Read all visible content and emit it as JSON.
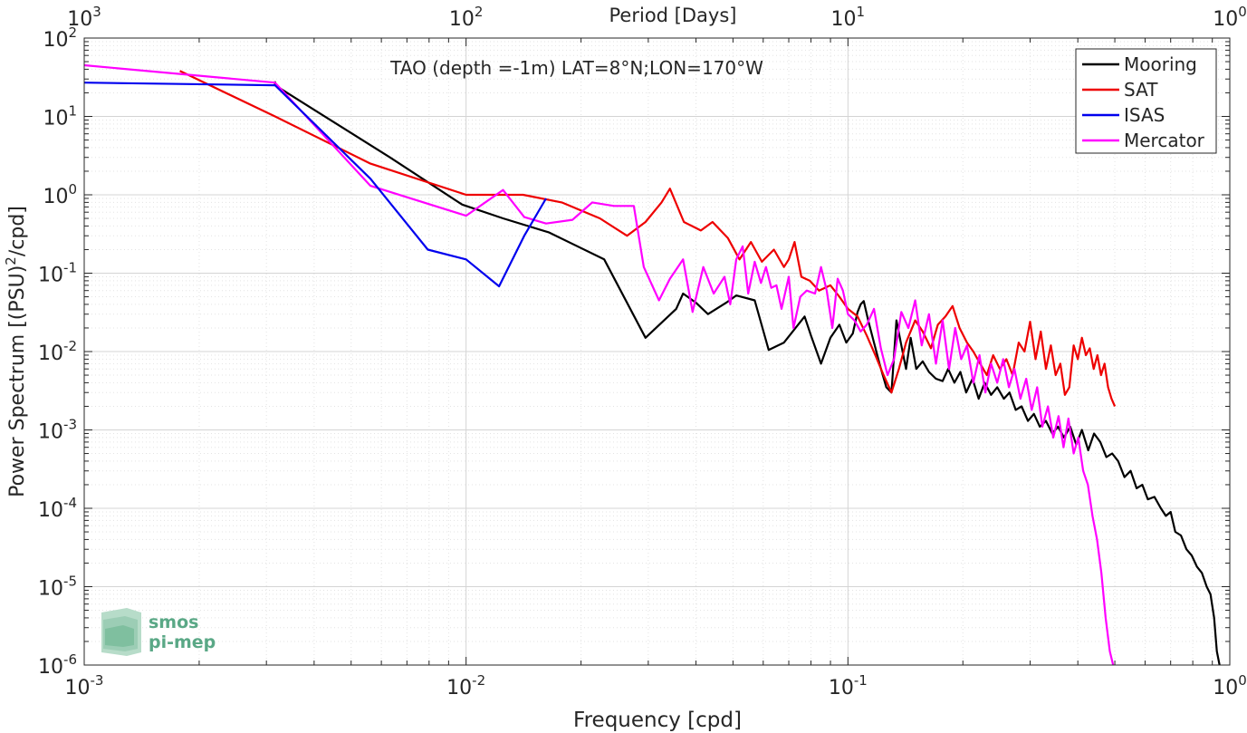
{
  "chart_data": {
    "type": "line",
    "title": "TAO (depth =-1m) LAT=8°N;LON=170°W",
    "xlabel": "Frequency [cpd]",
    "ylabel_main": "Power Spectrum [(PSU)",
    "ylabel_sup": "2",
    "ylabel_tail": "/cpd]",
    "top_xlabel": "Period [Days]",
    "xscale": "log",
    "yscale": "log",
    "xlim": [
      0.001,
      1
    ],
    "ylim": [
      1e-06,
      100
    ],
    "grid": true,
    "legend_position": "top-right",
    "x_ticks": [
      {
        "value": 0.001,
        "base": "10",
        "exp": "-3"
      },
      {
        "value": 0.01,
        "base": "10",
        "exp": "-2"
      },
      {
        "value": 0.1,
        "base": "10",
        "exp": "-1"
      },
      {
        "value": 1,
        "base": "10",
        "exp": "0"
      }
    ],
    "top_ticks": [
      {
        "value": 0.001,
        "base": "10",
        "exp": "3"
      },
      {
        "value": 0.01,
        "base": "10",
        "exp": "2"
      },
      {
        "value": 0.1,
        "base": "10",
        "exp": "1"
      },
      {
        "value": 1,
        "base": "10",
        "exp": "0"
      }
    ],
    "y_ticks": [
      {
        "value": 1e-06,
        "base": "10",
        "exp": "-6"
      },
      {
        "value": 1e-05,
        "base": "10",
        "exp": "-5"
      },
      {
        "value": 0.0001,
        "base": "10",
        "exp": "-4"
      },
      {
        "value": 0.001,
        "base": "10",
        "exp": "-3"
      },
      {
        "value": 0.01,
        "base": "10",
        "exp": "-2"
      },
      {
        "value": 0.1,
        "base": "10",
        "exp": "-1"
      },
      {
        "value": 1,
        "base": "10",
        "exp": "0"
      },
      {
        "value": 10,
        "base": "10",
        "exp": "1"
      },
      {
        "value": 100,
        "base": "10",
        "exp": "2"
      }
    ],
    "series": [
      {
        "name": "Mooring",
        "color": "#000000",
        "points": [
          [
            0.00316,
            28
          ],
          [
            0.00316,
            25
          ],
          [
            0.00632,
            3
          ],
          [
            0.00977,
            0.75
          ],
          [
            0.0125,
            0.5
          ],
          [
            0.0165,
            0.33
          ],
          [
            0.023,
            0.15
          ],
          [
            0.0295,
            0.015
          ],
          [
            0.0355,
            0.035
          ],
          [
            0.037,
            0.055
          ],
          [
            0.04,
            0.042
          ],
          [
            0.043,
            0.03
          ],
          [
            0.048,
            0.042
          ],
          [
            0.051,
            0.052
          ],
          [
            0.057,
            0.045
          ],
          [
            0.062,
            0.0105
          ],
          [
            0.068,
            0.013
          ],
          [
            0.077,
            0.028
          ],
          [
            0.08,
            0.016
          ],
          [
            0.085,
            0.007
          ],
          [
            0.09,
            0.015
          ],
          [
            0.095,
            0.022
          ],
          [
            0.099,
            0.013
          ],
          [
            0.103,
            0.017
          ],
          [
            0.106,
            0.032
          ],
          [
            0.108,
            0.04
          ],
          [
            0.11,
            0.044
          ],
          [
            0.113,
            0.025
          ],
          [
            0.117,
            0.013
          ],
          [
            0.121,
            0.007
          ],
          [
            0.126,
            0.0035
          ],
          [
            0.13,
            0.003
          ],
          [
            0.134,
            0.025
          ],
          [
            0.138,
            0.012
          ],
          [
            0.142,
            0.006
          ],
          [
            0.146,
            0.015
          ],
          [
            0.151,
            0.006
          ],
          [
            0.157,
            0.0075
          ],
          [
            0.163,
            0.0055
          ],
          [
            0.17,
            0.0045
          ],
          [
            0.177,
            0.0042
          ],
          [
            0.183,
            0.006
          ],
          [
            0.19,
            0.004
          ],
          [
            0.197,
            0.0055
          ],
          [
            0.204,
            0.003
          ],
          [
            0.212,
            0.0045
          ],
          [
            0.22,
            0.0025
          ],
          [
            0.228,
            0.004
          ],
          [
            0.237,
            0.0028
          ],
          [
            0.246,
            0.0035
          ],
          [
            0.256,
            0.0025
          ],
          [
            0.265,
            0.003
          ],
          [
            0.275,
            0.0018
          ],
          [
            0.285,
            0.002
          ],
          [
            0.296,
            0.0013
          ],
          [
            0.307,
            0.0016
          ],
          [
            0.318,
            0.0011
          ],
          [
            0.33,
            0.0013
          ],
          [
            0.343,
            0.0009
          ],
          [
            0.355,
            0.0011
          ],
          [
            0.368,
            0.0008
          ],
          [
            0.382,
            0.0011
          ],
          [
            0.396,
            0.00065
          ],
          [
            0.41,
            0.001
          ],
          [
            0.426,
            0.00055
          ],
          [
            0.441,
            0.0009
          ],
          [
            0.458,
            0.0007
          ],
          [
            0.475,
            0.00045
          ],
          [
            0.492,
            0.0005
          ],
          [
            0.51,
            0.0004
          ],
          [
            0.53,
            0.00025
          ],
          [
            0.55,
            0.0003
          ],
          [
            0.57,
            0.00018
          ],
          [
            0.59,
            0.0002
          ],
          [
            0.61,
            0.00013
          ],
          [
            0.635,
            0.00014
          ],
          [
            0.66,
            0.0001
          ],
          [
            0.68,
            8e-05
          ],
          [
            0.7,
            9e-05
          ],
          [
            0.72,
            5e-05
          ],
          [
            0.745,
            4.5e-05
          ],
          [
            0.77,
            3e-05
          ],
          [
            0.795,
            2.5e-05
          ],
          [
            0.82,
            1.8e-05
          ],
          [
            0.845,
            1.5e-05
          ],
          [
            0.87,
            1e-05
          ],
          [
            0.89,
            8e-06
          ],
          [
            0.91,
            4e-06
          ],
          [
            0.925,
            1.5e-06
          ],
          [
            0.94,
            1e-06
          ]
        ]
      },
      {
        "name": "SAT",
        "color": "#ee0000",
        "points": [
          [
            0.00178,
            38
          ],
          [
            0.00316,
            10
          ],
          [
            0.00562,
            2.5
          ],
          [
            0.01,
            1
          ],
          [
            0.0141,
            1
          ],
          [
            0.0178,
            0.8
          ],
          [
            0.0224,
            0.5
          ],
          [
            0.0264,
            0.3
          ],
          [
            0.0295,
            0.45
          ],
          [
            0.0325,
            0.8
          ],
          [
            0.0342,
            1.2
          ],
          [
            0.0372,
            0.45
          ],
          [
            0.0412,
            0.35
          ],
          [
            0.0442,
            0.45
          ],
          [
            0.0485,
            0.28
          ],
          [
            0.052,
            0.15
          ],
          [
            0.0557,
            0.25
          ],
          [
            0.0595,
            0.14
          ],
          [
            0.064,
            0.2
          ],
          [
            0.068,
            0.12
          ],
          [
            0.07,
            0.15
          ],
          [
            0.0725,
            0.25
          ],
          [
            0.0755,
            0.09
          ],
          [
            0.0795,
            0.08
          ],
          [
            0.084,
            0.06
          ],
          [
            0.09,
            0.07
          ],
          [
            0.095,
            0.05
          ],
          [
            0.1,
            0.035
          ],
          [
            0.106,
            0.028
          ],
          [
            0.112,
            0.016
          ],
          [
            0.118,
            0.009
          ],
          [
            0.124,
            0.005
          ],
          [
            0.13,
            0.003
          ],
          [
            0.136,
            0.006
          ],
          [
            0.142,
            0.013
          ],
          [
            0.15,
            0.025
          ],
          [
            0.157,
            0.018
          ],
          [
            0.165,
            0.011
          ],
          [
            0.172,
            0.022
          ],
          [
            0.18,
            0.028
          ],
          [
            0.188,
            0.038
          ],
          [
            0.196,
            0.02
          ],
          [
            0.205,
            0.013
          ],
          [
            0.213,
            0.01
          ],
          [
            0.222,
            0.007
          ],
          [
            0.231,
            0.005
          ],
          [
            0.24,
            0.009
          ],
          [
            0.25,
            0.006
          ],
          [
            0.26,
            0.008
          ],
          [
            0.27,
            0.005
          ],
          [
            0.28,
            0.013
          ],
          [
            0.29,
            0.01
          ],
          [
            0.3,
            0.024
          ],
          [
            0.31,
            0.008
          ],
          [
            0.32,
            0.018
          ],
          [
            0.33,
            0.006
          ],
          [
            0.34,
            0.012
          ],
          [
            0.35,
            0.005
          ],
          [
            0.36,
            0.007
          ],
          [
            0.37,
            0.0028
          ],
          [
            0.38,
            0.0035
          ],
          [
            0.39,
            0.012
          ],
          [
            0.4,
            0.008
          ],
          [
            0.41,
            0.015
          ],
          [
            0.42,
            0.009
          ],
          [
            0.43,
            0.011
          ],
          [
            0.44,
            0.006
          ],
          [
            0.45,
            0.009
          ],
          [
            0.46,
            0.005
          ],
          [
            0.47,
            0.007
          ],
          [
            0.48,
            0.0035
          ],
          [
            0.49,
            0.0025
          ],
          [
            0.5,
            0.002
          ]
        ]
      },
      {
        "name": "ISAS",
        "color": "#0000ee",
        "points": [
          [
            0.001,
            27
          ],
          [
            0.00316,
            25
          ],
          [
            0.00562,
            1.6
          ],
          [
            0.00794,
            0.2
          ],
          [
            0.01,
            0.15
          ],
          [
            0.0122,
            0.068
          ],
          [
            0.0142,
            0.3
          ],
          [
            0.0162,
            0.9
          ]
        ]
      },
      {
        "name": "Mercator",
        "color": "#ff00ff",
        "points": [
          [
            0.001,
            45
          ],
          [
            0.00316,
            27
          ],
          [
            0.00562,
            1.3
          ],
          [
            0.01,
            0.54
          ],
          [
            0.0125,
            1.15
          ],
          [
            0.0142,
            0.52
          ],
          [
            0.0162,
            0.43
          ],
          [
            0.019,
            0.48
          ],
          [
            0.0214,
            0.8
          ],
          [
            0.0244,
            0.72
          ],
          [
            0.0275,
            0.72
          ],
          [
            0.0292,
            0.12
          ],
          [
            0.032,
            0.045
          ],
          [
            0.0342,
            0.085
          ],
          [
            0.037,
            0.15
          ],
          [
            0.0392,
            0.032
          ],
          [
            0.0418,
            0.12
          ],
          [
            0.0445,
            0.055
          ],
          [
            0.0475,
            0.09
          ],
          [
            0.0492,
            0.04
          ],
          [
            0.051,
            0.15
          ],
          [
            0.053,
            0.22
          ],
          [
            0.0548,
            0.055
          ],
          [
            0.057,
            0.14
          ],
          [
            0.0592,
            0.075
          ],
          [
            0.061,
            0.12
          ],
          [
            0.063,
            0.065
          ],
          [
            0.065,
            0.07
          ],
          [
            0.067,
            0.035
          ],
          [
            0.07,
            0.09
          ],
          [
            0.072,
            0.02
          ],
          [
            0.075,
            0.05
          ],
          [
            0.078,
            0.06
          ],
          [
            0.082,
            0.055
          ],
          [
            0.085,
            0.12
          ],
          [
            0.088,
            0.06
          ],
          [
            0.091,
            0.02
          ],
          [
            0.094,
            0.085
          ],
          [
            0.097,
            0.06
          ],
          [
            0.1,
            0.03
          ],
          [
            0.104,
            0.025
          ],
          [
            0.108,
            0.018
          ],
          [
            0.112,
            0.022
          ],
          [
            0.117,
            0.035
          ],
          [
            0.122,
            0.011
          ],
          [
            0.127,
            0.005
          ],
          [
            0.132,
            0.008
          ],
          [
            0.138,
            0.032
          ],
          [
            0.144,
            0.02
          ],
          [
            0.15,
            0.045
          ],
          [
            0.156,
            0.012
          ],
          [
            0.163,
            0.03
          ],
          [
            0.17,
            0.007
          ],
          [
            0.177,
            0.025
          ],
          [
            0.184,
            0.006
          ],
          [
            0.191,
            0.02
          ],
          [
            0.198,
            0.008
          ],
          [
            0.205,
            0.012
          ],
          [
            0.213,
            0.004
          ],
          [
            0.221,
            0.009
          ],
          [
            0.229,
            0.003
          ],
          [
            0.237,
            0.007
          ],
          [
            0.246,
            0.004
          ],
          [
            0.255,
            0.008
          ],
          [
            0.264,
            0.0035
          ],
          [
            0.273,
            0.006
          ],
          [
            0.283,
            0.0025
          ],
          [
            0.293,
            0.0045
          ],
          [
            0.303,
            0.0018
          ],
          [
            0.313,
            0.0035
          ],
          [
            0.323,
            0.0011
          ],
          [
            0.334,
            0.002
          ],
          [
            0.345,
            0.0008
          ],
          [
            0.356,
            0.0015
          ],
          [
            0.367,
            0.0006
          ],
          [
            0.378,
            0.0014
          ],
          [
            0.39,
            0.0005
          ],
          [
            0.401,
            0.0008
          ],
          [
            0.413,
            0.0003
          ],
          [
            0.425,
            0.0002
          ],
          [
            0.437,
            8e-05
          ],
          [
            0.449,
            4e-05
          ],
          [
            0.461,
            1.5e-05
          ],
          [
            0.473,
            4e-06
          ],
          [
            0.485,
            1.5e-06
          ],
          [
            0.495,
            1e-06
          ]
        ]
      }
    ]
  },
  "logo": {
    "line1": "smos",
    "line2": "pi-mep",
    "color": "#5aa886"
  }
}
